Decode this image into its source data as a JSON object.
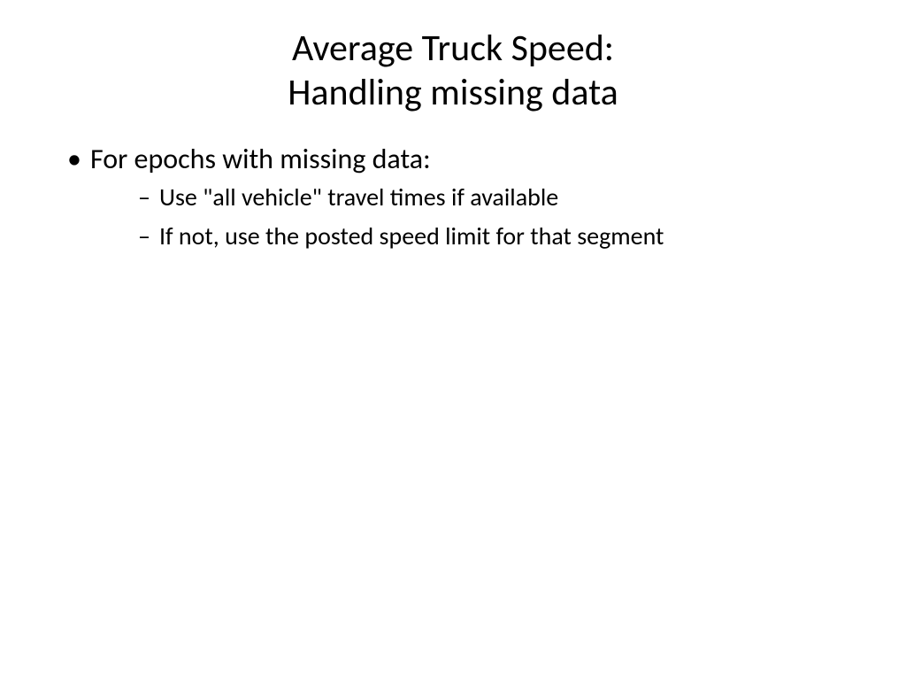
{
  "slide": {
    "title_line1": "Average Truck Speed:",
    "title_line2": "Handling missing data",
    "bullets": {
      "main": "For epochs with missing data:",
      "sub1": "Use \"all vehicle\" travel times if available",
      "sub2": "If not, use the posted speed limit for that segment"
    }
  },
  "styling": {
    "background_color": "#ffffff",
    "text_color": "#000000",
    "font_family": "Calibri",
    "title_fontsize_pt": 40,
    "bullet_l1_fontsize_pt": 32,
    "bullet_l2_fontsize_pt": 28
  }
}
